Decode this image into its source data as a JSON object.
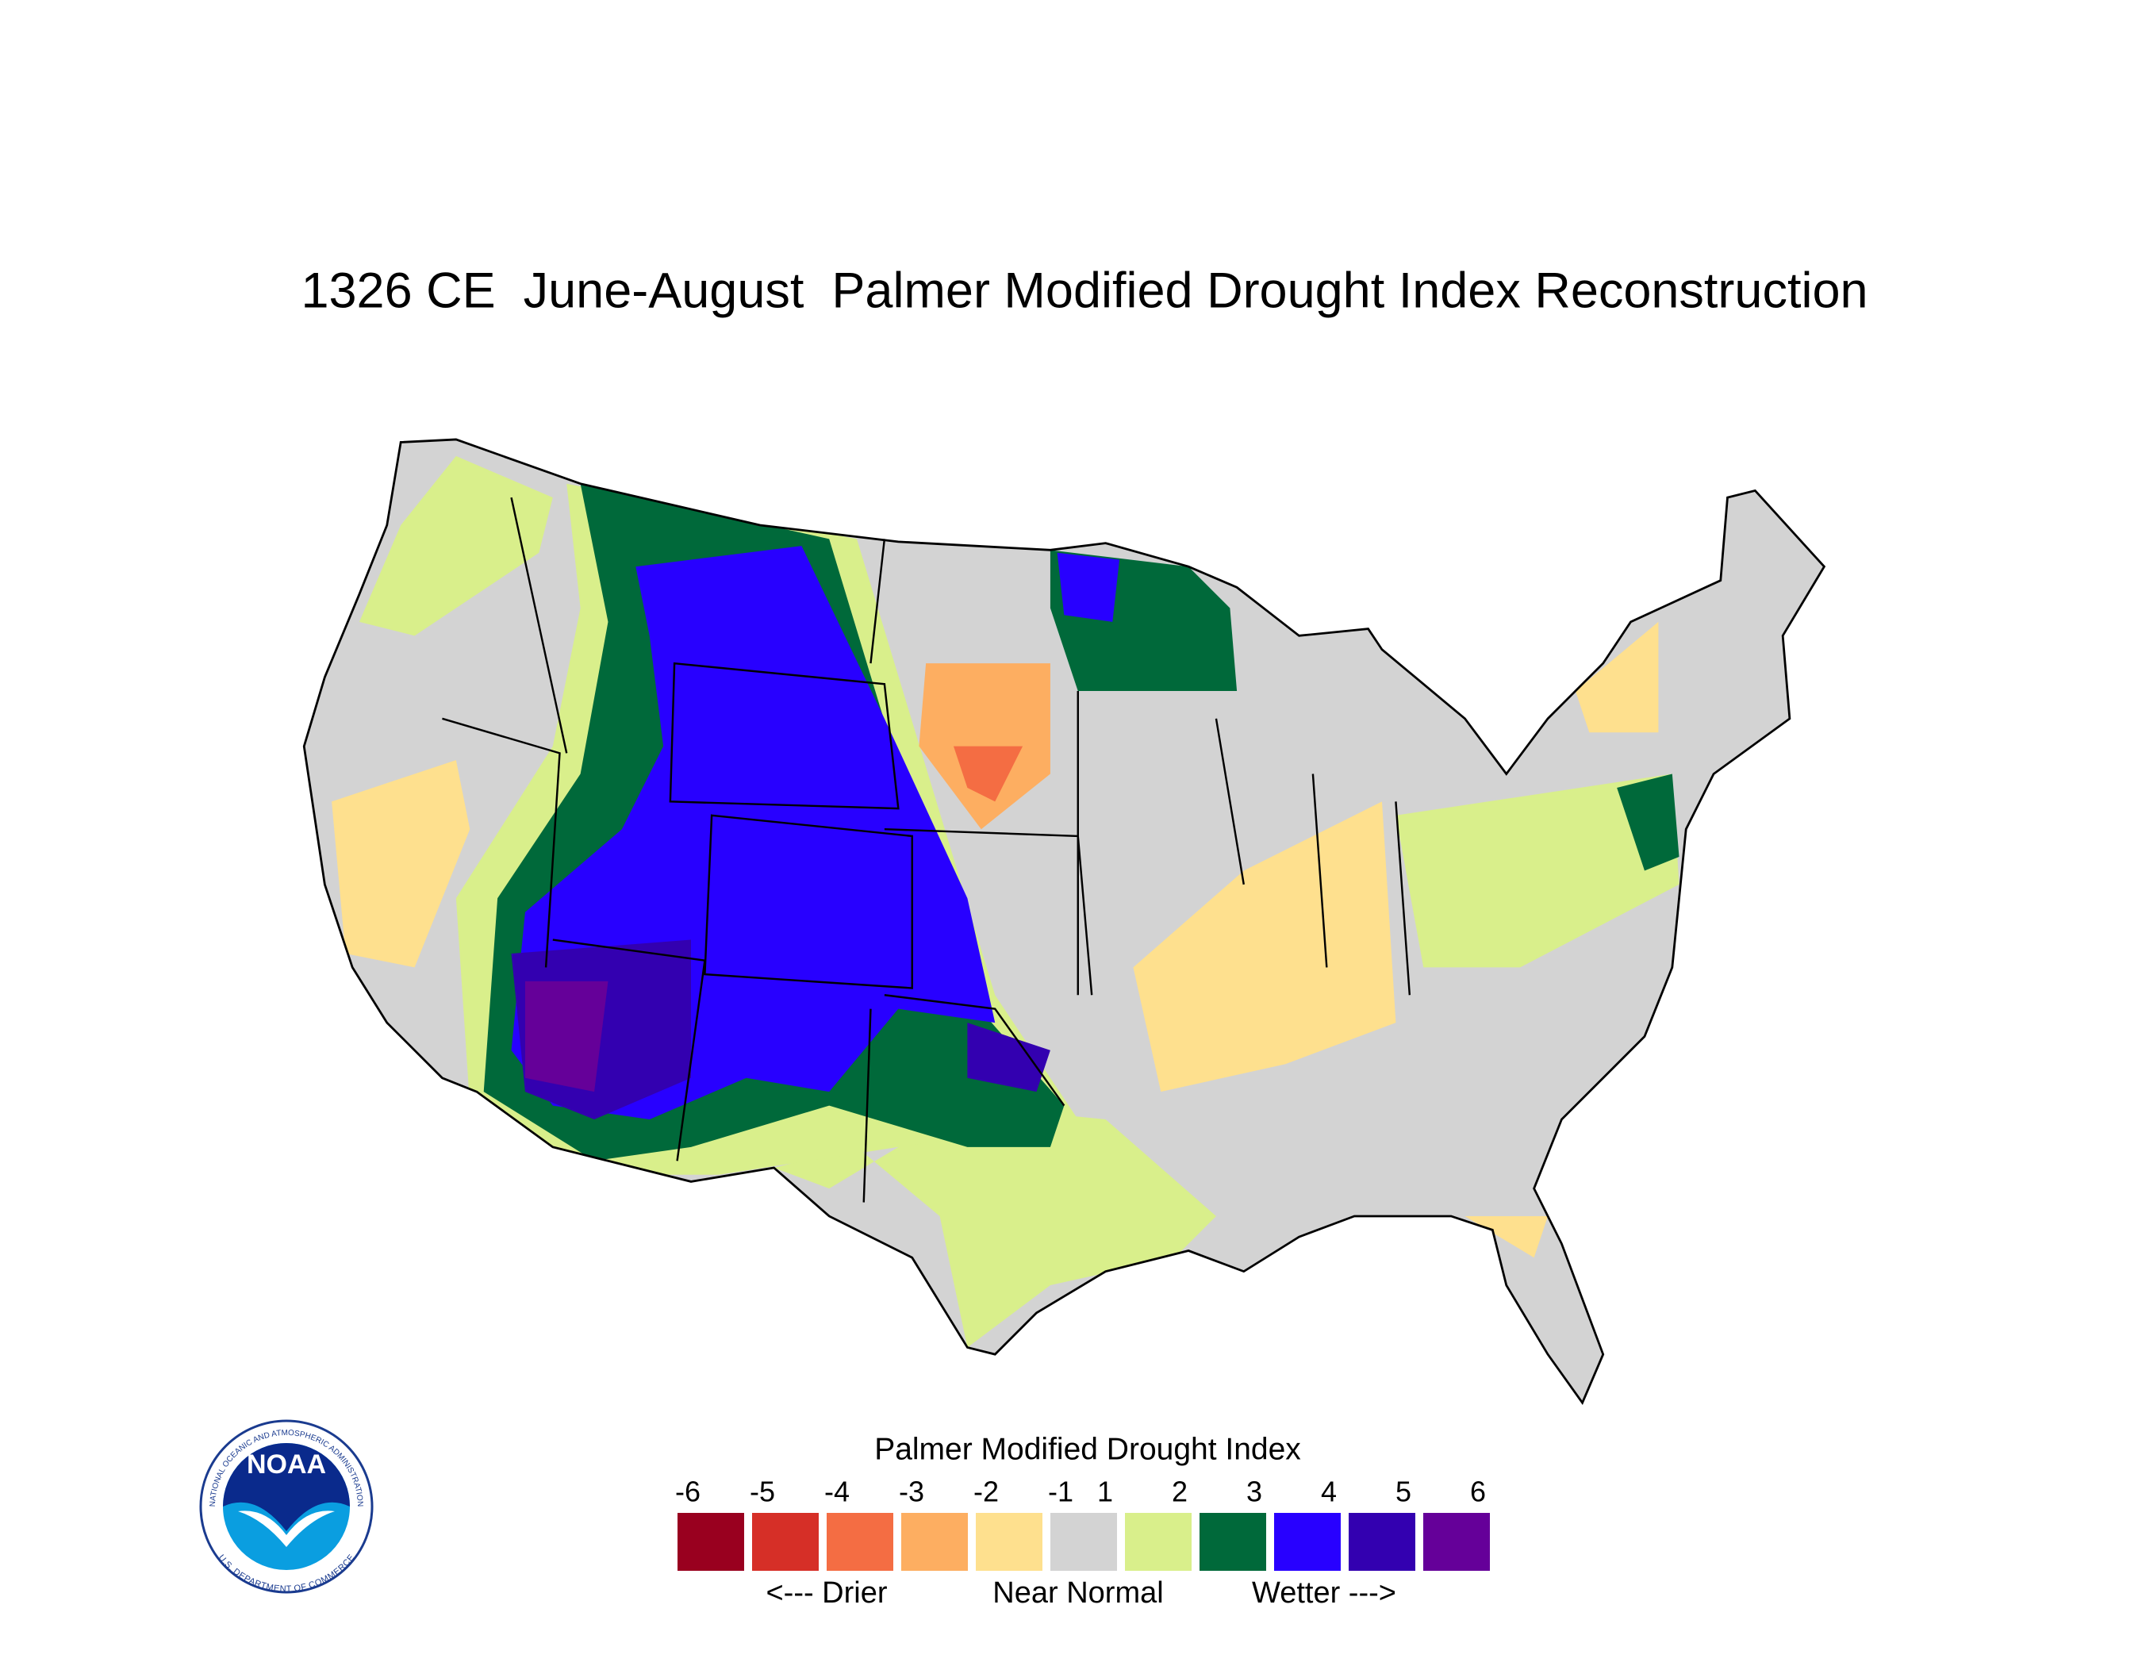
{
  "chart_data": {
    "type": "map",
    "title": "1326 CE  June-August  Palmer Modified Drought Index Reconstruction",
    "legend": {
      "title": "Palmer Modified Drought Index",
      "ticks": [
        -6,
        -5,
        -4,
        -3,
        -2,
        -1,
        1,
        2,
        3,
        4,
        5,
        6
      ],
      "colors": [
        "#99001f",
        "#d62f27",
        "#f46d43",
        "#fdae61",
        "#fee08e",
        "#d3d3d3",
        "#d9ef8b",
        "#00693a",
        "#2800ff",
        "#3300b0",
        "#650099"
      ],
      "annotations": [
        "<--- Drier",
        "Near Normal",
        "Wetter --->"
      ]
    }
  },
  "logo": {
    "name": "NOAA",
    "ring_top": "NATIONAL OCEANIC AND ATMOSPHERIC ADMINISTRATION",
    "ring_bottom": "U.S. DEPARTMENT OF COMMERCE"
  }
}
